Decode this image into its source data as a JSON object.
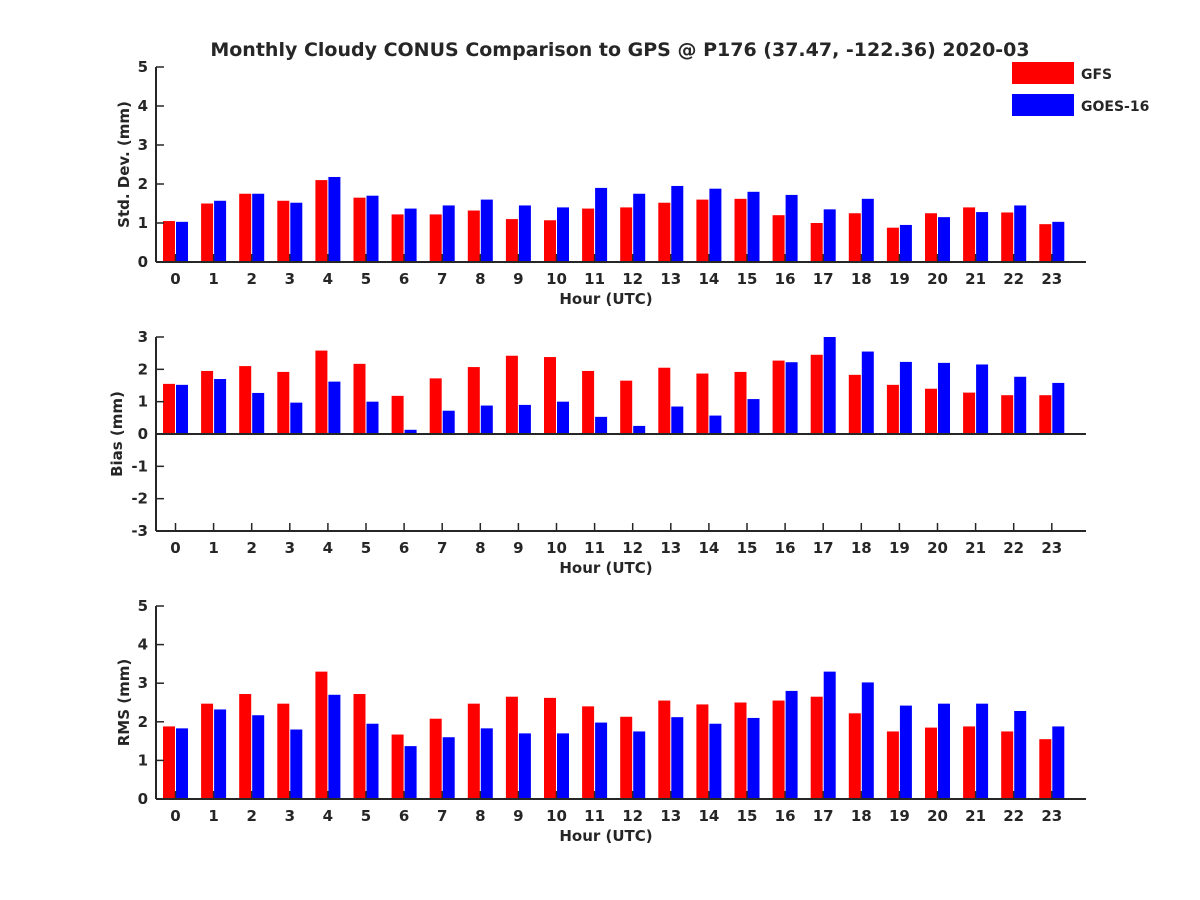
{
  "title": "Monthly Cloudy CONUS Comparison to GPS @ P176 (37.47, -122.36) 2020-03",
  "legend": {
    "placement": "top-right",
    "items": [
      {
        "label": "GFS",
        "color": "#ff0000"
      },
      {
        "label": "GOES-16",
        "color": "#0000ff"
      }
    ]
  },
  "chart_data": [
    {
      "type": "bar",
      "xlabel": "Hour (UTC)",
      "ylabel": "Std. Dev. (mm)",
      "ylim": [
        0,
        5
      ],
      "yticks": [
        0,
        1,
        2,
        3,
        4,
        5
      ],
      "categories": [
        "0",
        "1",
        "2",
        "3",
        "4",
        "5",
        "6",
        "7",
        "8",
        "9",
        "10",
        "11",
        "12",
        "13",
        "14",
        "15",
        "16",
        "17",
        "18",
        "19",
        "20",
        "21",
        "22",
        "23"
      ],
      "series": [
        {
          "name": "GFS",
          "color": "#ff0000",
          "values": [
            1.05,
            1.5,
            1.75,
            1.57,
            2.1,
            1.65,
            1.22,
            1.22,
            1.32,
            1.1,
            1.07,
            1.37,
            1.4,
            1.52,
            1.6,
            1.62,
            1.2,
            1.0,
            1.25,
            0.88,
            1.25,
            1.4,
            1.27,
            0.97
          ]
        },
        {
          "name": "GOES-16",
          "color": "#0000ff",
          "values": [
            1.03,
            1.57,
            1.75,
            1.52,
            2.18,
            1.7,
            1.37,
            1.45,
            1.6,
            1.45,
            1.4,
            1.9,
            1.75,
            1.95,
            1.88,
            1.8,
            1.72,
            1.35,
            1.62,
            0.95,
            1.15,
            1.28,
            1.45,
            1.03
          ]
        }
      ]
    },
    {
      "type": "bar",
      "xlabel": "Hour (UTC)",
      "ylabel": "Bias (mm)",
      "ylim": [
        -3,
        3
      ],
      "yticks": [
        -3,
        -2,
        -1,
        0,
        1,
        2,
        3
      ],
      "categories": [
        "0",
        "1",
        "2",
        "3",
        "4",
        "5",
        "6",
        "7",
        "8",
        "9",
        "10",
        "11",
        "12",
        "13",
        "14",
        "15",
        "16",
        "17",
        "18",
        "19",
        "20",
        "21",
        "22",
        "23"
      ],
      "series": [
        {
          "name": "GFS",
          "color": "#ff0000",
          "values": [
            1.55,
            1.95,
            2.1,
            1.92,
            2.58,
            2.17,
            1.18,
            1.72,
            2.07,
            2.42,
            2.38,
            1.95,
            1.65,
            2.05,
            1.87,
            1.92,
            2.27,
            2.45,
            1.83,
            1.52,
            1.4,
            1.28,
            1.2,
            1.2
          ]
        },
        {
          "name": "GOES-16",
          "color": "#0000ff",
          "values": [
            1.52,
            1.7,
            1.27,
            0.97,
            1.62,
            1.0,
            0.13,
            0.72,
            0.88,
            0.9,
            1.0,
            0.53,
            0.25,
            0.85,
            0.57,
            1.08,
            2.22,
            3.0,
            2.55,
            2.23,
            2.2,
            2.15,
            1.77,
            1.58
          ]
        }
      ]
    },
    {
      "type": "bar",
      "xlabel": "Hour (UTC)",
      "ylabel": "RMS (mm)",
      "ylim": [
        0,
        5
      ],
      "yticks": [
        0,
        1,
        2,
        3,
        4,
        5
      ],
      "categories": [
        "0",
        "1",
        "2",
        "3",
        "4",
        "5",
        "6",
        "7",
        "8",
        "9",
        "10",
        "11",
        "12",
        "13",
        "14",
        "15",
        "16",
        "17",
        "18",
        "19",
        "20",
        "21",
        "22",
        "23"
      ],
      "series": [
        {
          "name": "GFS",
          "color": "#ff0000",
          "values": [
            1.88,
            2.47,
            2.72,
            2.47,
            3.3,
            2.72,
            1.67,
            2.08,
            2.47,
            2.65,
            2.62,
            2.4,
            2.13,
            2.55,
            2.45,
            2.5,
            2.55,
            2.65,
            2.22,
            1.75,
            1.85,
            1.88,
            1.75,
            1.55
          ]
        },
        {
          "name": "GOES-16",
          "color": "#0000ff",
          "values": [
            1.83,
            2.32,
            2.17,
            1.8,
            2.7,
            1.95,
            1.37,
            1.6,
            1.83,
            1.7,
            1.7,
            1.98,
            1.75,
            2.12,
            1.95,
            2.1,
            2.8,
            3.3,
            3.02,
            2.42,
            2.47,
            2.47,
            2.28,
            1.88
          ]
        }
      ]
    }
  ]
}
